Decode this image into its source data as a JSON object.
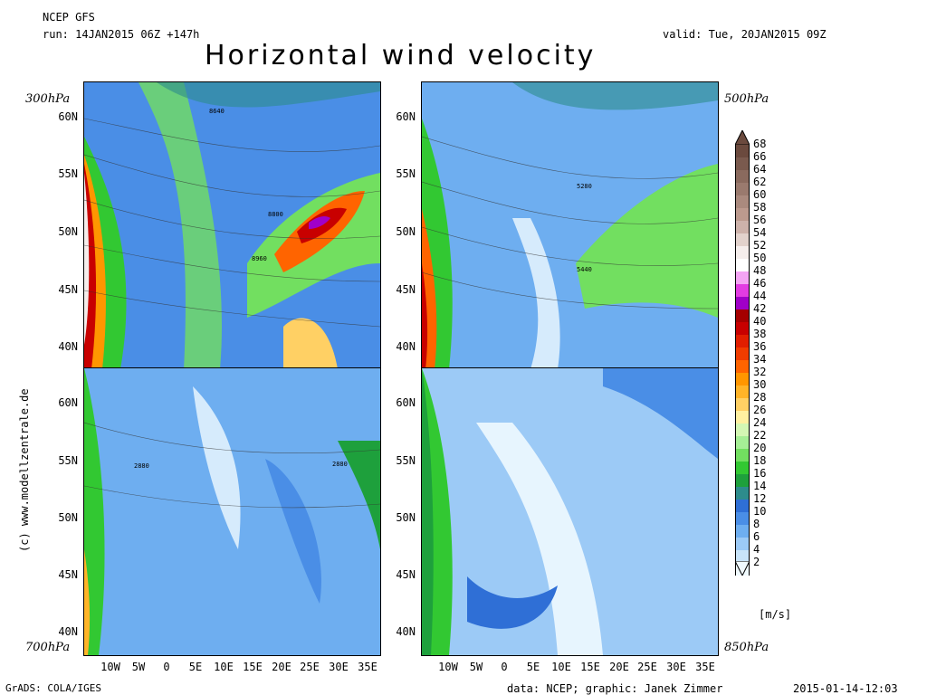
{
  "header": {
    "model": "NCEP GFS",
    "run": "run: 14JAN2015 06Z +147h",
    "valid": "valid: Tue, 20JAN2015 09Z",
    "title": "Horizontal wind velocity"
  },
  "panels": {
    "top_left": {
      "level": "300hPa",
      "contour_labels": [
        "8640",
        "8800",
        "8960"
      ]
    },
    "top_right": {
      "level": "500hPa",
      "contour_labels": [
        "5280",
        "5440"
      ]
    },
    "bottom_left": {
      "level": "700hPa",
      "contour_labels": [
        "2880",
        "2880"
      ]
    },
    "bottom_right": {
      "level": "850hPa",
      "contour_labels": []
    }
  },
  "lat_labels": [
    "60N",
    "55N",
    "50N",
    "45N",
    "40N"
  ],
  "lon_labels": [
    "10W",
    "5W",
    "0",
    "5E",
    "10E",
    "15E",
    "20E",
    "25E",
    "30E",
    "35E"
  ],
  "colorbar": {
    "values": [
      "68",
      "66",
      "64",
      "62",
      "60",
      "58",
      "56",
      "54",
      "52",
      "50",
      "48",
      "46",
      "44",
      "42",
      "40",
      "38",
      "36",
      "34",
      "32",
      "30",
      "28",
      "26",
      "24",
      "22",
      "20",
      "18",
      "16",
      "14",
      "12",
      "10",
      "8",
      "6",
      "4",
      "2"
    ],
    "colors": [
      "#6b4a3e",
      "#7a5a4e",
      "#8a6a5e",
      "#9a7a6e",
      "#aa8a7e",
      "#bc9a8e",
      "#cdb2aa",
      "#e2d2cc",
      "#f5eeec",
      "#ffffff",
      "#f4a4f4",
      "#e23ce2",
      "#a000c8",
      "#a50000",
      "#c80000",
      "#e11e00",
      "#f03c00",
      "#ff6400",
      "#ff9600",
      "#ffb428",
      "#ffd064",
      "#fff0a0",
      "#d4f7b4",
      "#a6ef96",
      "#72df60",
      "#32c832",
      "#1ea03c",
      "#2d8c8c",
      "#2f6fd6",
      "#4a8ee6",
      "#6eaef0",
      "#9ccaf6",
      "#c8e4fa",
      "#f0faff"
    ],
    "unit": "[m/s]"
  },
  "credit": "(c) www.modellzentrale.de",
  "footer": {
    "left": "GrADS: COLA/IGES",
    "center": "data: NCEP; graphic: Janek Zimmer",
    "right": "2015-01-14-12:03"
  }
}
